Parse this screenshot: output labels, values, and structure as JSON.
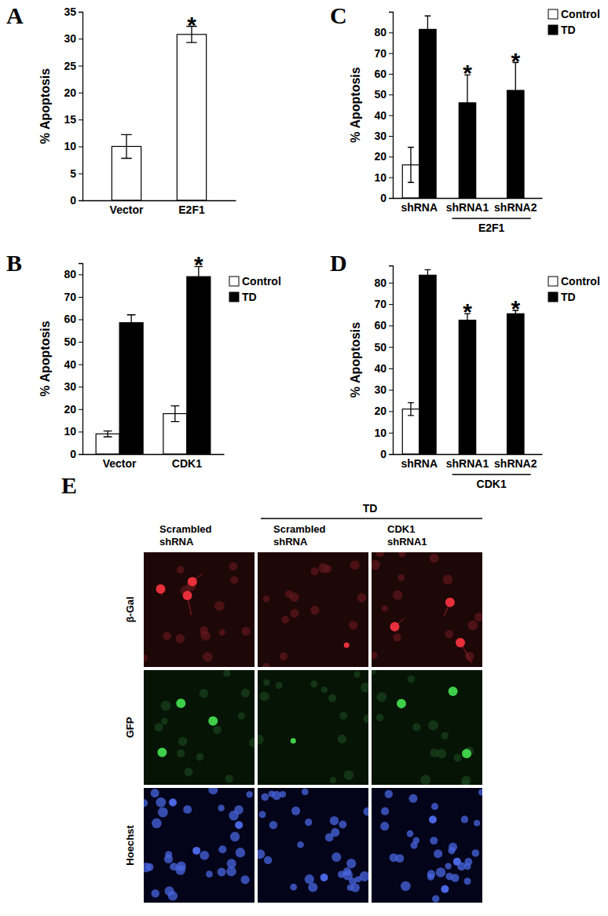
{
  "chart_data": [
    {
      "type": "bar",
      "title": "A",
      "y_label": "% Apoptosis",
      "categories": [
        "Vector",
        "E2F1"
      ],
      "values": [
        10,
        30.8
      ],
      "errors": [
        2.2,
        1.5
      ],
      "color": "#ffffff",
      "ylim": [
        0,
        35
      ],
      "yticks": [
        0,
        5,
        10,
        15,
        20,
        25,
        30,
        35
      ],
      "annotations": [
        {
          "text": "*",
          "category": "E2F1"
        }
      ]
    },
    {
      "type": "bar",
      "title": "B",
      "y_label": "% Apoptosis",
      "categories": [
        "Vector",
        "CDK1"
      ],
      "series": [
        {
          "name": "Control",
          "color": "#ffffff",
          "values": [
            9,
            18
          ],
          "errors": [
            1.3,
            3.5
          ]
        },
        {
          "name": "TD",
          "color": "#000000",
          "values": [
            58.5,
            79
          ],
          "errors": [
            3.5,
            4.5
          ]
        }
      ],
      "ylim": [
        0,
        85
      ],
      "yticks": [
        0,
        10,
        20,
        30,
        40,
        50,
        60,
        70,
        80
      ],
      "legend": "top-right",
      "annotations": [
        {
          "text": "*",
          "series": "TD",
          "category": "CDK1"
        }
      ]
    },
    {
      "type": "bar",
      "title": "C",
      "y_label": "% Apoptosis",
      "categories": [
        "shRNA",
        "shRNA1",
        "shRNA2"
      ],
      "series": [
        {
          "name": "Control",
          "color": "#ffffff",
          "values": [
            16,
            null,
            null
          ],
          "errors": [
            8.5,
            null,
            null
          ]
        },
        {
          "name": "TD",
          "color": "#000000",
          "values": [
            81.5,
            46,
            52
          ],
          "errors": [
            6.5,
            13.5,
            13.5
          ]
        }
      ],
      "ylim": [
        0,
        90
      ],
      "yticks": [
        0,
        10,
        20,
        30,
        40,
        50,
        60,
        70,
        80
      ],
      "legend": "top-right",
      "annotations": [
        {
          "text": "*",
          "series": "TD",
          "category": "shRNA1"
        },
        {
          "text": "*",
          "series": "TD",
          "category": "shRNA2"
        },
        {
          "text": "E2F1",
          "categories": [
            "shRNA1",
            "shRNA2"
          ]
        }
      ]
    },
    {
      "type": "bar",
      "title": "D",
      "y_label": "% Apoptosis",
      "categories": [
        "shRNA",
        "shRNA1",
        "shRNA2"
      ],
      "series": [
        {
          "name": "Control",
          "color": "#ffffff",
          "values": [
            21,
            null,
            null
          ],
          "errors": [
            3,
            null,
            null
          ]
        },
        {
          "name": "TD",
          "color": "#000000",
          "values": [
            83.5,
            62.5,
            65.5
          ],
          "errors": [
            2.5,
            3,
            1.5
          ]
        }
      ],
      "ylim": [
        0,
        88
      ],
      "yticks": [
        0,
        10,
        20,
        30,
        40,
        50,
        60,
        70,
        80
      ],
      "legend": "top-right",
      "annotations": [
        {
          "text": "*",
          "series": "TD",
          "category": "shRNA1"
        },
        {
          "text": "*",
          "series": "TD",
          "category": "shRNA2"
        },
        {
          "text": "CDK1",
          "categories": [
            "shRNA1",
            "shRNA2"
          ]
        }
      ]
    }
  ],
  "image_panel": {
    "title": "E",
    "header": "TD",
    "columns": [
      [
        "Scrambled",
        "shRNA"
      ],
      [
        "Scrambled",
        "shRNA"
      ],
      [
        "CDK1",
        "shRNA1"
      ]
    ],
    "rows": [
      "β-Gal",
      "GFP",
      "Hoechst"
    ]
  }
}
